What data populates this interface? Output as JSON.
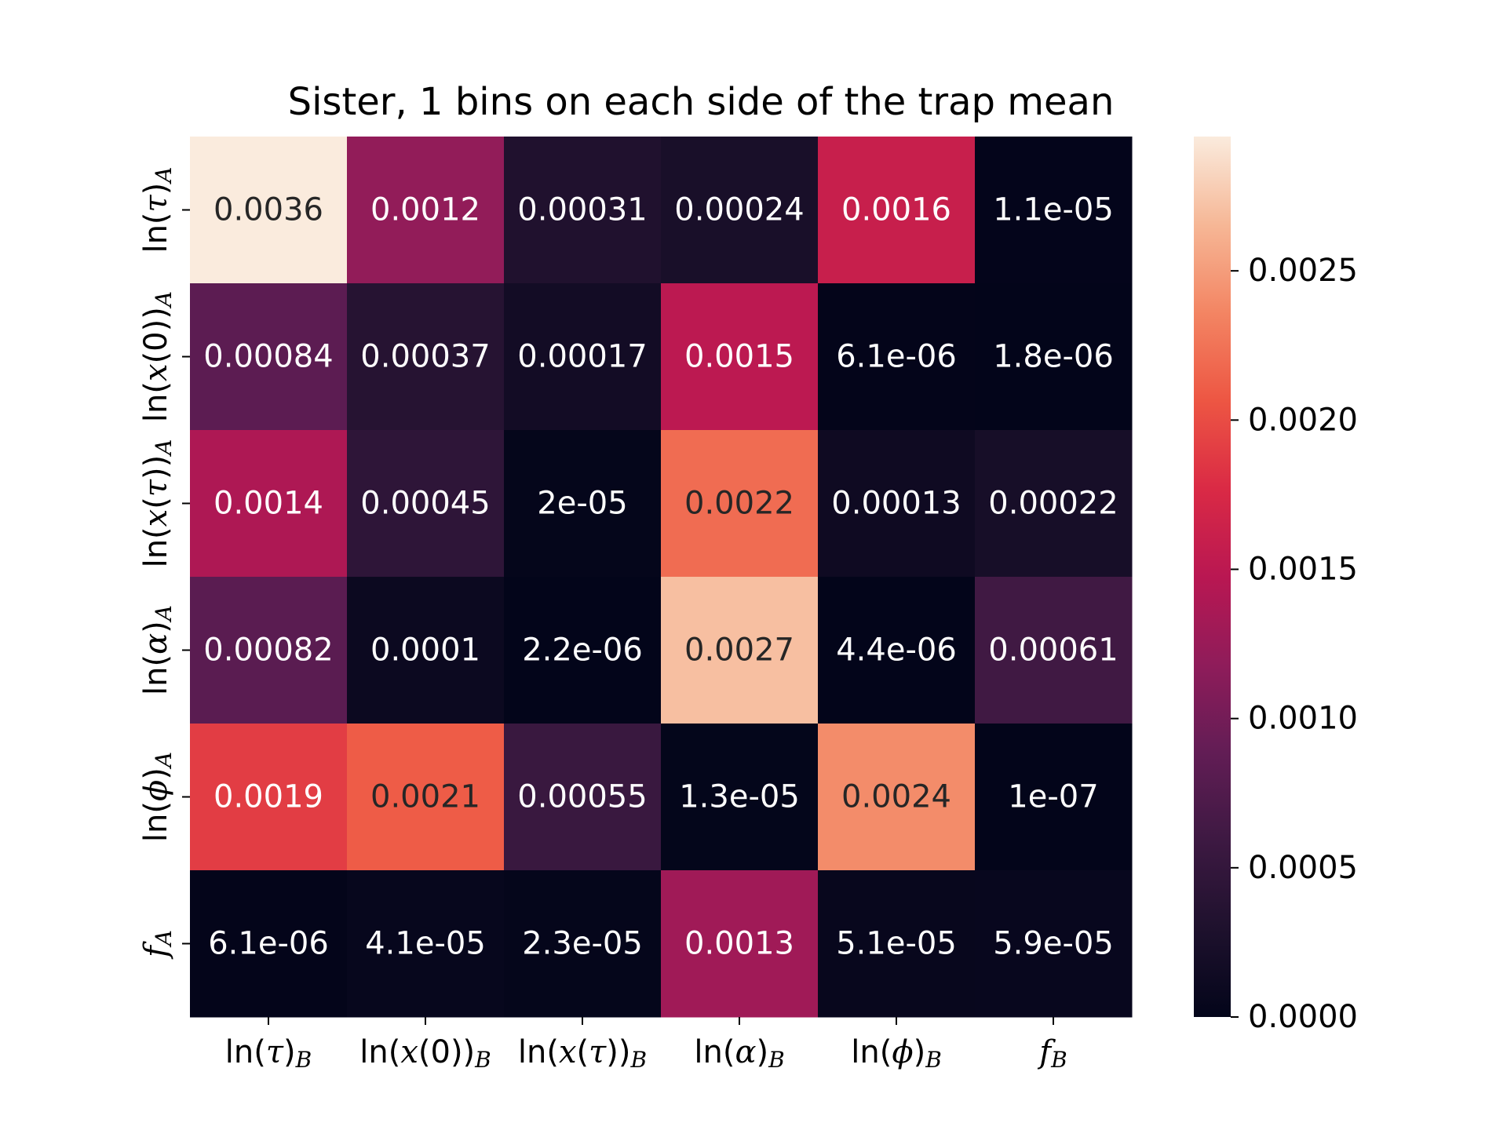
{
  "chart_data": {
    "type": "heatmap",
    "title": "Sister, 1 bins on each side of the trap mean",
    "x_categories": [
      "ln(τ)_B",
      "ln(x(0))_B",
      "ln(x(τ))_B",
      "ln(α)_B",
      "ln(ϕ)_B",
      "f_B"
    ],
    "y_categories": [
      "ln(τ)_A",
      "ln(x(0))_A",
      "ln(x(τ))_A",
      "ln(α)_A",
      "ln(ϕ)_A",
      "f_A"
    ],
    "x_tick_labels": [
      {
        "base": "ln(",
        "ital": "τ",
        "close": ")",
        "sub": "B"
      },
      {
        "base": "ln(",
        "ital": "x",
        "mid": "(0))",
        "sub": "B"
      },
      {
        "base": "ln(",
        "ital": "x",
        "mid": "(",
        "ital2": "τ",
        "close": "))",
        "sub": "B"
      },
      {
        "base": "ln(",
        "ital": "α",
        "close": ")",
        "sub": "B"
      },
      {
        "base": "ln(",
        "ital": "ϕ",
        "close": ")",
        "sub": "B"
      },
      {
        "ital": "f",
        "sub": "B"
      }
    ],
    "y_tick_labels": [
      {
        "base": "ln(",
        "ital": "τ",
        "close": ")",
        "sub": "A"
      },
      {
        "base": "ln(",
        "ital": "x",
        "mid": "(0))",
        "sub": "A"
      },
      {
        "base": "ln(",
        "ital": "x",
        "mid": "(",
        "ital2": "τ",
        "close": "))",
        "sub": "A"
      },
      {
        "base": "ln(",
        "ital": "α",
        "close": ")",
        "sub": "A"
      },
      {
        "base": "ln(",
        "ital": "ϕ",
        "close": ")",
        "sub": "A"
      },
      {
        "ital": "f",
        "sub": "A"
      }
    ],
    "values": [
      [
        0.0036,
        0.0012,
        0.00031,
        0.00024,
        0.0016,
        1.1e-05
      ],
      [
        0.00084,
        0.00037,
        0.00017,
        0.0015,
        6.1e-06,
        1.8e-06
      ],
      [
        0.0014,
        0.00045,
        2e-05,
        0.0022,
        0.00013,
        0.00022
      ],
      [
        0.00082,
        0.0001,
        2.2e-06,
        0.0027,
        4.4e-06,
        0.00061
      ],
      [
        0.0019,
        0.0021,
        0.00055,
        1.3e-05,
        0.0024,
        1e-07
      ],
      [
        6.1e-06,
        4.1e-05,
        2.3e-05,
        0.0013,
        5.1e-05,
        5.9e-05
      ]
    ],
    "annotations": [
      [
        "0.0036",
        "0.0012",
        "0.00031",
        "0.00024",
        "0.0016",
        "1.1e-05"
      ],
      [
        "0.00084",
        "0.00037",
        "0.00017",
        "0.0015",
        "6.1e-06",
        "1.8e-06"
      ],
      [
        "0.0014",
        "0.00045",
        "2e-05",
        "0.0022",
        "0.00013",
        "0.00022"
      ],
      [
        "0.00082",
        "0.0001",
        "2.2e-06",
        "0.0027",
        "4.4e-06",
        "0.00061"
      ],
      [
        "0.0019",
        "0.0021",
        "0.00055",
        "1.3e-05",
        "0.0024",
        "1e-07"
      ],
      [
        "6.1e-06",
        "4.1e-05",
        "2.3e-05",
        "0.0013",
        "5.1e-05",
        "5.9e-05"
      ]
    ],
    "colorbar": {
      "vmin": 0,
      "vmax": 0.00295,
      "ticks": [
        0,
        0.0005,
        0.001,
        0.0015,
        0.002,
        0.0025
      ],
      "tick_labels": [
        "0.0000",
        "0.0005",
        "0.0010",
        "0.0015",
        "0.0020",
        "0.0025"
      ],
      "colormap": "rocket"
    },
    "grid": false
  }
}
